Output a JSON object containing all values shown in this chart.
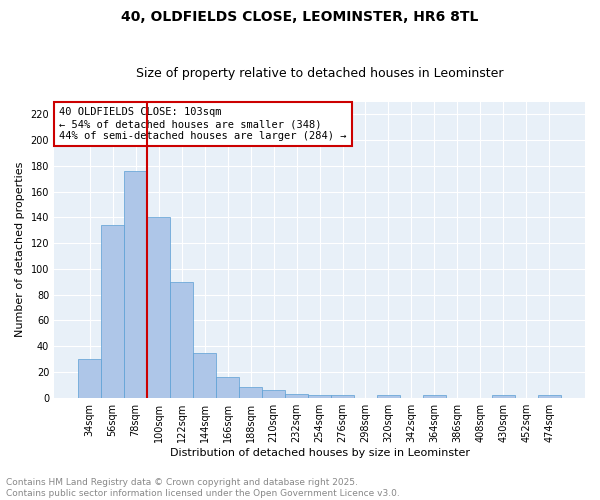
{
  "title_line1": "40, OLDFIELDS CLOSE, LEOMINSTER, HR6 8TL",
  "title_line2": "Size of property relative to detached houses in Leominster",
  "xlabel": "Distribution of detached houses by size in Leominster",
  "ylabel": "Number of detached properties",
  "bar_values": [
    30,
    134,
    176,
    140,
    90,
    35,
    16,
    8,
    6,
    3,
    2,
    2,
    0,
    2,
    0,
    2,
    0,
    0,
    2,
    0,
    2
  ],
  "bar_labels": [
    "34sqm",
    "56sqm",
    "78sqm",
    "100sqm",
    "122sqm",
    "144sqm",
    "166sqm",
    "188sqm",
    "210sqm",
    "232sqm",
    "254sqm",
    "276sqm",
    "298sqm",
    "320sqm",
    "342sqm",
    "364sqm",
    "386sqm",
    "408sqm",
    "430sqm",
    "452sqm",
    "474sqm"
  ],
  "bar_color": "#aec6e8",
  "bar_edge_color": "#5a9fd4",
  "vline_index": 3,
  "vline_color": "#cc0000",
  "annotation_line1": "40 OLDFIELDS CLOSE: 103sqm",
  "annotation_line2": "← 54% of detached houses are smaller (348)",
  "annotation_line3": "44% of semi-detached houses are larger (284) →",
  "box_edge_color": "#cc0000",
  "footnote_line1": "Contains HM Land Registry data © Crown copyright and database right 2025.",
  "footnote_line2": "Contains public sector information licensed under the Open Government Licence v3.0.",
  "ylim": [
    0,
    230
  ],
  "yticks": [
    0,
    20,
    40,
    60,
    80,
    100,
    120,
    140,
    160,
    180,
    200,
    220
  ],
  "plot_bg_color": "#e8f0f8",
  "fig_bg_color": "#ffffff",
  "grid_color": "#ffffff",
  "title_fontsize": 10,
  "subtitle_fontsize": 9,
  "axis_label_fontsize": 8,
  "tick_fontsize": 7,
  "annotation_fontsize": 7.5,
  "footnote_fontsize": 6.5
}
